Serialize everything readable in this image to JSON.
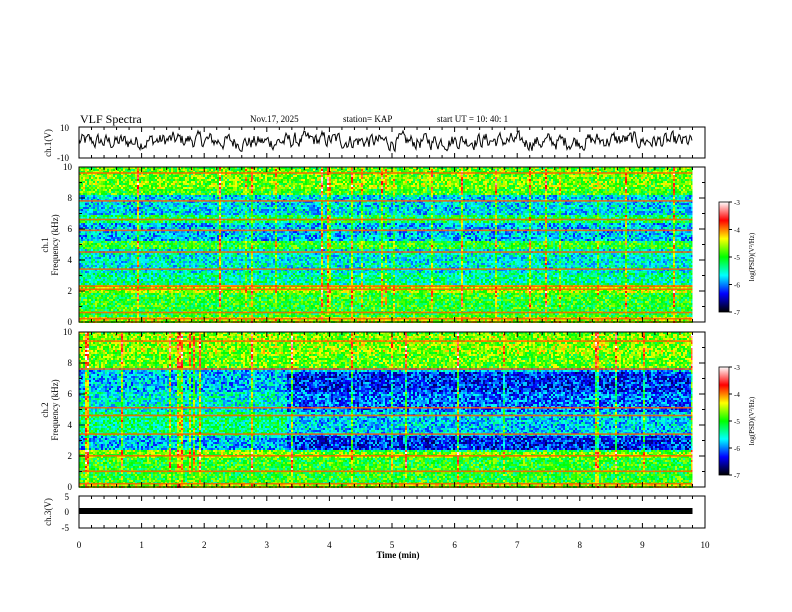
{
  "header": {
    "title": "VLF Spectra",
    "date": "Nov.17, 2025",
    "station": "station= KAP",
    "start_ut": "start  UT =   10: 40: 1"
  },
  "colorbar": {
    "label": "log(PSD)(V²/Hz)",
    "ticks": [
      "-3",
      "-4",
      "-5",
      "-6",
      "-7"
    ],
    "colors": [
      "#ffffff",
      "#ff0000",
      "#ffff00",
      "#00ff00",
      "#00ffff",
      "#0000ff",
      "#000000"
    ]
  },
  "chart_data": [
    {
      "type": "line",
      "name": "ch1-waveform",
      "ylabel": "ch.1(V)",
      "ylim": [
        -10,
        10
      ],
      "yticks": [
        "10",
        "-10"
      ],
      "xlim": [
        0,
        10
      ],
      "data_end_min": 9.8,
      "series": [
        {
          "name": "ch.1",
          "description": "noisy waveform oscillating roughly between -5 and 8 V"
        }
      ]
    },
    {
      "type": "heatmap",
      "name": "ch1-spectrogram",
      "ylabel": "ch.1\nFrequency (kHz)",
      "ylim": [
        0,
        10
      ],
      "yticks": [
        "0",
        "2",
        "4",
        "6",
        "8",
        "10"
      ],
      "xlim": [
        0,
        10
      ],
      "value_range": [
        -7,
        -3
      ],
      "background_bands_khz": [
        [
          0,
          0.4,
          -4.5
        ],
        [
          0.4,
          2.0,
          -5.0
        ],
        [
          2.0,
          2.4,
          -4.6
        ],
        [
          2.4,
          3.2,
          -5.4
        ],
        [
          3.2,
          4.8,
          -5.6
        ],
        [
          4.8,
          5.3,
          -5.0
        ],
        [
          5.3,
          6.4,
          -5.8
        ],
        [
          6.4,
          7.0,
          -5.2
        ],
        [
          7.0,
          8.3,
          -5.7
        ],
        [
          8.3,
          10,
          -4.9
        ]
      ],
      "emission_lines_khz": [
        0.2,
        0.6,
        2.1,
        2.3,
        3.4,
        4.5,
        5.9,
        6.6,
        7.8,
        9.6
      ]
    },
    {
      "type": "heatmap",
      "name": "ch2-spectrogram",
      "ylabel": "ch.2\nFrequency (kHz)",
      "ylim": [
        0,
        10
      ],
      "yticks": [
        "0",
        "2",
        "4",
        "6",
        "8",
        "10"
      ],
      "xlim": [
        0,
        10
      ],
      "value_range": [
        -7,
        -3
      ],
      "background_bands_khz": [
        [
          0,
          0.3,
          -4.5
        ],
        [
          0.3,
          2.0,
          -5.0
        ],
        [
          2.0,
          2.4,
          -4.7
        ],
        [
          2.4,
          3.3,
          -5.8
        ],
        [
          3.3,
          4.9,
          -5.3
        ],
        [
          4.9,
          6.2,
          -5.6
        ],
        [
          6.2,
          7.8,
          -5.8
        ],
        [
          7.8,
          10,
          -4.8
        ]
      ],
      "quiet_region": {
        "t_from_min": 3.3,
        "f_from_khz": 2.3,
        "f_to_khz": 7.5
      },
      "emission_lines_khz": [
        0.2,
        1.0,
        2.0,
        3.4,
        4.6,
        5.1,
        7.6,
        9.4
      ]
    },
    {
      "type": "line",
      "name": "ch3-waveform",
      "ylabel": "ch.3(V)",
      "ylim": [
        -5,
        5
      ],
      "yticks": [
        "5",
        "0",
        "-5"
      ],
      "xlim": [
        0,
        10
      ],
      "data_end_min": 9.8,
      "series": [
        {
          "name": "ch.3",
          "description": "flat trace near 0 V"
        }
      ]
    }
  ],
  "xaxis": {
    "label": "Time (min)",
    "ticks": [
      "0",
      "1",
      "2",
      "3",
      "4",
      "5",
      "6",
      "7",
      "8",
      "9",
      "10"
    ]
  }
}
